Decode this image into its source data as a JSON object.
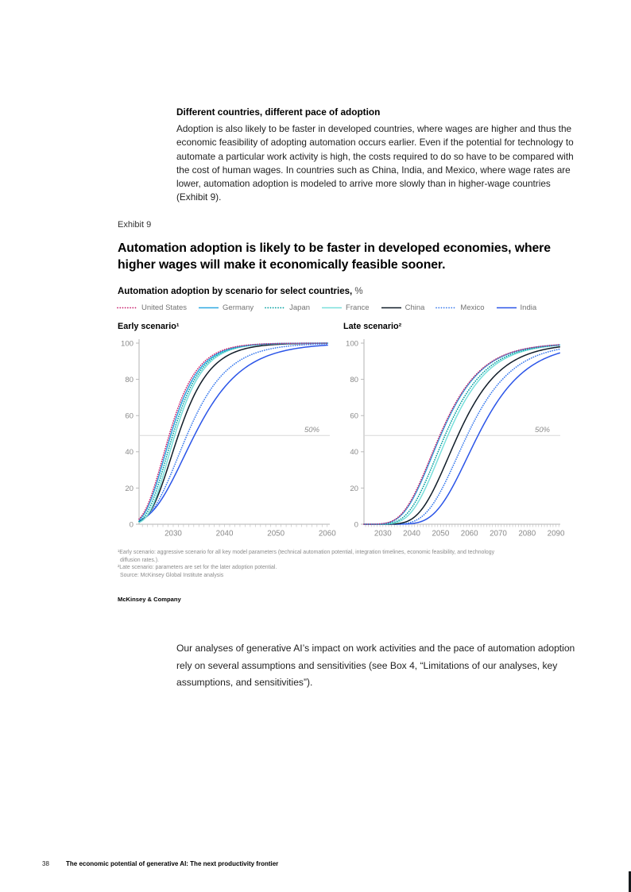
{
  "page": {
    "number": "38",
    "footer_title": "The economic potential of generative AI: The next productivity frontier"
  },
  "intro": {
    "heading": "Different countries, different pace of adoption",
    "body": "Adoption is also likely to be faster in developed countries, where wages are higher and thus the economic feasibility of adopting automation occurs earlier. Even if the potential for technology to automate a particular work activity is high, the costs required to do so have to be compared with the cost of human wages. In countries such as China, India, and Mexico, where wage rates are lower, automation adoption is modeled to arrive more slowly than in higher-wage countries (Exhibit 9)."
  },
  "exhibit": {
    "label": "Exhibit 9",
    "title": "Automation adoption is likely to be faster in developed economies, where higher wages will make it economically feasible sooner.",
    "subtitle_bold": "Automation adoption by scenario for select countries,",
    "subtitle_unit": "%",
    "footnotes": [
      "¹Early scenario: aggressive scenario for all key model parameters (technical automation potential, integration timelines, economic feasibility, and technology",
      "diffusion rates.).",
      "²Late scenario: parameters are set for the later adoption potential.",
      "Source: McKinsey Global Institute analysis"
    ],
    "brand": "McKinsey & Company"
  },
  "closing": {
    "body": "Our analyses of generative AI’s impact on work activities and the pace of automation adoption rely on several assumptions and sensitivities (see Box 4, “Limitations of our analyses, key assumptions, and sensitivities”)."
  },
  "colors": {
    "axis": "#b3b3b3",
    "minor_tick": "#c4c4c4",
    "tick_label": "#8a8a8a",
    "ref_line": "#d8d8d8",
    "ref_label": "#8a8a8a",
    "legend_label": "#737373"
  },
  "chart_data": [
    {
      "type": "line",
      "title": "Early scenario¹",
      "xlabel": "",
      "ylabel": "",
      "x_min": 2023.35,
      "x_max": 2060.5,
      "x_ticks": [
        2030,
        2040,
        2050,
        2060
      ],
      "y_ticks": [
        0,
        20,
        40,
        60,
        80,
        100
      ],
      "ylim": [
        0,
        100
      ],
      "grid": "off",
      "ref_line": {
        "value": 49,
        "label": "50%"
      },
      "series": [
        {
          "name": "United States",
          "color": "#c9226e",
          "style": "dotted",
          "gompertz": {
            "c": 0.275,
            "t50": 2029.3
          },
          "tick_values": [
            56,
            96,
            100,
            100
          ]
        },
        {
          "name": "Germany",
          "color": "#2fa9e1",
          "style": "solid",
          "gompertz": {
            "c": 0.27,
            "t50": 2029.6
          },
          "tick_values": [
            54,
            96,
            100,
            100
          ]
        },
        {
          "name": "Japan",
          "color": "#009fa0",
          "style": "dotted",
          "gompertz": {
            "c": 0.27,
            "t50": 2030.0
          },
          "tick_values": [
            50,
            95,
            100,
            100
          ]
        },
        {
          "name": "France",
          "color": "#79dfdb",
          "style": "solid",
          "gompertz": {
            "c": 0.27,
            "t50": 2030.4
          },
          "tick_values": [
            46,
            95,
            100,
            100
          ]
        },
        {
          "name": "China",
          "color": "#101c28",
          "style": "solid",
          "gompertz": {
            "c": 0.24,
            "t50": 2031.1
          },
          "tick_values": [
            41,
            92,
            99,
            100
          ]
        },
        {
          "name": "Mexico",
          "color": "#3b7bed",
          "style": "dotted",
          "gompertz": {
            "c": 0.19,
            "t50": 2032.8
          },
          "tick_values": [
            31,
            84,
            97,
            100
          ]
        },
        {
          "name": "India",
          "color": "#2b55e8",
          "style": "solid",
          "gompertz": {
            "c": 0.16,
            "t50": 2034.3
          },
          "tick_values": [
            25,
            76,
            94,
            99
          ]
        }
      ]
    },
    {
      "type": "line",
      "title": "Late scenario²",
      "xlabel": "",
      "ylabel": "",
      "x_min": 2023.45,
      "x_max": 2091.5,
      "x_ticks": [
        2030,
        2040,
        2050,
        2060,
        2070,
        2080,
        2090
      ],
      "y_ticks": [
        0,
        20,
        40,
        60,
        80,
        100
      ],
      "ylim": [
        0,
        100
      ],
      "grid": "off",
      "ref_line": {
        "value": 49,
        "label": "50%"
      },
      "series": [
        {
          "name": "United States",
          "color": "#c9226e",
          "style": "dotted",
          "gompertz": {
            "c": 0.105,
            "t50": 2050.0
          },
          "tick_values": [
            0.4,
            14,
            50,
            78,
            92,
            97,
            99
          ]
        },
        {
          "name": "Germany",
          "color": "#2fa9e1",
          "style": "solid",
          "gompertz": {
            "c": 0.105,
            "t50": 2050.3
          },
          "tick_values": [
            0.4,
            13,
            49,
            78,
            92,
            97,
            99
          ]
        },
        {
          "name": "Japan",
          "color": "#009fa0",
          "style": "dotted",
          "gompertz": {
            "c": 0.105,
            "t50": 2051.8
          },
          "tick_values": [
            0.2,
            9,
            43,
            75,
            90,
            96,
            99
          ]
        },
        {
          "name": "France",
          "color": "#79dfdb",
          "style": "solid",
          "gompertz": {
            "c": 0.105,
            "t50": 2052.8
          },
          "tick_values": [
            0.2,
            7,
            39,
            72,
            89,
            96,
            99
          ]
        },
        {
          "name": "China",
          "color": "#101c28",
          "style": "solid",
          "gompertz": {
            "c": 0.1,
            "t50": 2056.3
          },
          "tick_values": [
            0.1,
            3,
            27,
            62,
            84,
            94,
            98
          ]
        },
        {
          "name": "Mexico",
          "color": "#3b7bed",
          "style": "dotted",
          "gompertz": {
            "c": 0.095,
            "t50": 2059.5
          },
          "tick_values": [
            0.1,
            1,
            18,
            52,
            77,
            91,
            96
          ]
        },
        {
          "name": "India",
          "color": "#2b55e8",
          "style": "solid",
          "gompertz": {
            "c": 0.09,
            "t50": 2063.3
          },
          "tick_values": [
            0,
            0.4,
            10,
            39,
            68,
            86,
            94
          ]
        }
      ]
    }
  ]
}
